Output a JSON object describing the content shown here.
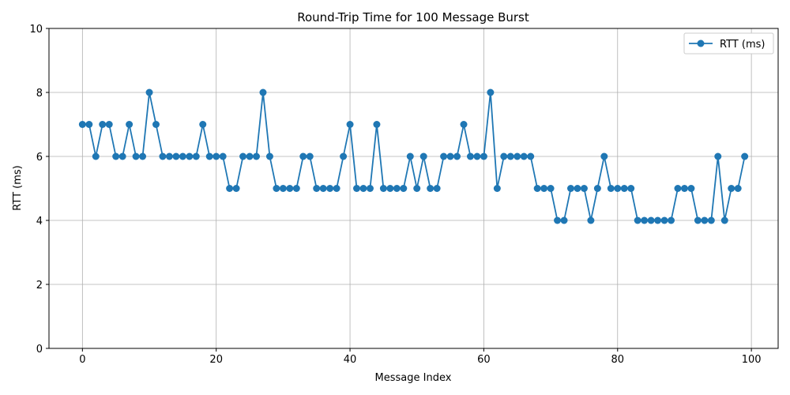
{
  "chart_data": {
    "type": "line",
    "title": "Round-Trip Time for 100 Message Burst",
    "xlabel": "Message Index",
    "ylabel": "RTT (ms)",
    "xlim": [
      -5,
      104
    ],
    "ylim": [
      0,
      10
    ],
    "xticks": [
      0,
      20,
      40,
      60,
      80,
      100
    ],
    "yticks": [
      0,
      2,
      4,
      6,
      8,
      10
    ],
    "grid": true,
    "legend_position": "top-right",
    "series": [
      {
        "name": "RTT (ms)",
        "color": "#1f77b4",
        "marker": "circle",
        "x": [
          0,
          1,
          2,
          3,
          4,
          5,
          6,
          7,
          8,
          9,
          10,
          11,
          12,
          13,
          14,
          15,
          16,
          17,
          18,
          19,
          20,
          21,
          22,
          23,
          24,
          25,
          26,
          27,
          28,
          29,
          30,
          31,
          32,
          33,
          34,
          35,
          36,
          37,
          38,
          39,
          40,
          41,
          42,
          43,
          44,
          45,
          46,
          47,
          48,
          49,
          50,
          51,
          52,
          53,
          54,
          55,
          56,
          57,
          58,
          59,
          60,
          61,
          62,
          63,
          64,
          65,
          66,
          67,
          68,
          69,
          70,
          71,
          72,
          73,
          74,
          75,
          76,
          77,
          78,
          79,
          80,
          81,
          82,
          83,
          84,
          85,
          86,
          87,
          88,
          89,
          90,
          91,
          92,
          93,
          94,
          95,
          96,
          97,
          98,
          99
        ],
        "values": [
          7,
          7,
          6,
          7,
          7,
          6,
          6,
          7,
          6,
          6,
          8,
          7,
          6,
          6,
          6,
          6,
          6,
          6,
          7,
          6,
          6,
          6,
          5,
          5,
          6,
          6,
          6,
          8,
          6,
          5,
          5,
          5,
          5,
          6,
          6,
          5,
          5,
          5,
          5,
          6,
          7,
          5,
          5,
          5,
          7,
          5,
          5,
          5,
          5,
          6,
          5,
          6,
          5,
          5,
          6,
          6,
          6,
          7,
          6,
          6,
          6,
          8,
          5,
          6,
          6,
          6,
          6,
          6,
          5,
          5,
          5,
          4,
          4,
          5,
          5,
          5,
          4,
          5,
          6,
          5,
          5,
          5,
          5,
          4,
          4,
          4,
          4,
          4,
          4,
          5,
          5,
          5,
          4,
          4,
          4,
          6,
          4,
          5,
          5,
          6
        ]
      }
    ]
  }
}
